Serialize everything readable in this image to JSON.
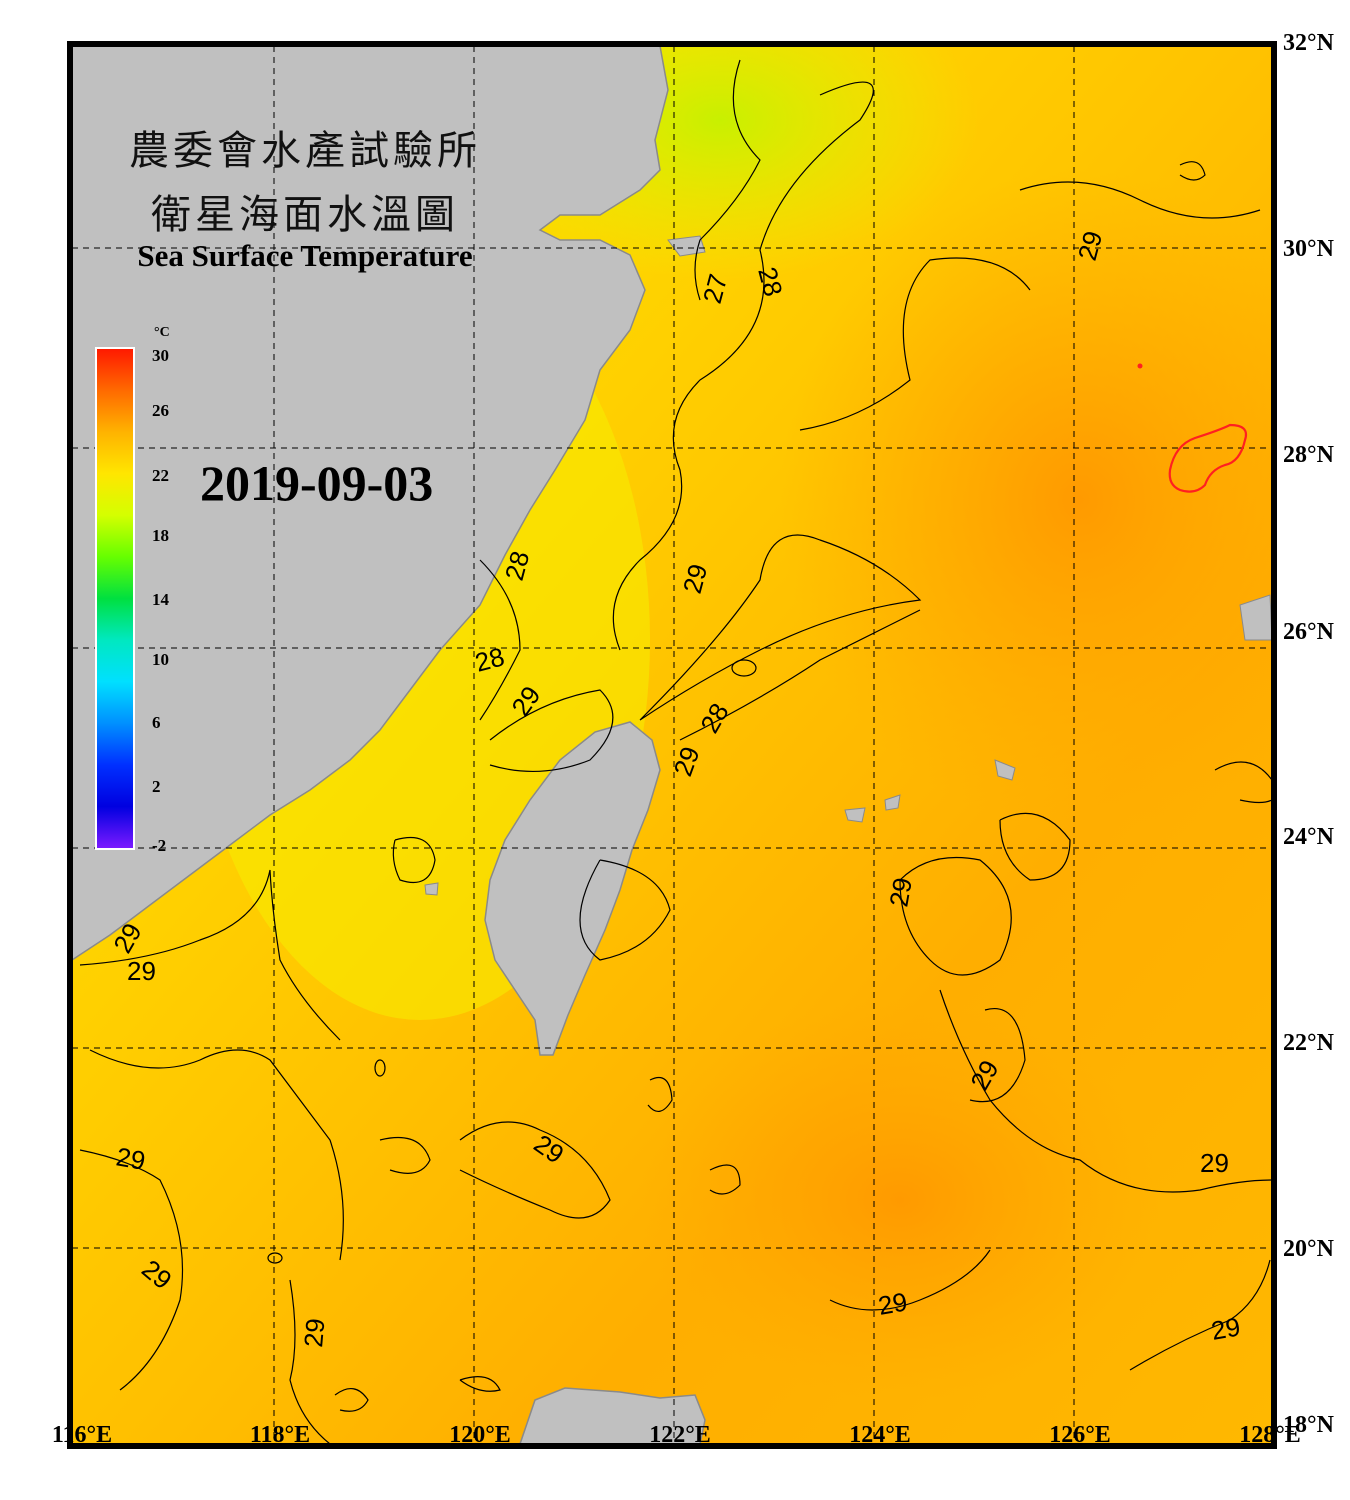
{
  "title_line1": "農委會水產試驗所",
  "title_line2": "衛星海面水溫圖",
  "title_en": "Sea Surface Temperature",
  "date": "2019-09-03",
  "colorbar": {
    "unit": "°C",
    "ticks": [
      "30",
      "26",
      "22",
      "18",
      "14",
      "10",
      "6",
      "2",
      "-2"
    ],
    "colors": [
      "#ff1a00",
      "#ff6a00",
      "#ffb300",
      "#ffe600",
      "#d4ff00",
      "#66ff00",
      "#00e040",
      "#00e8c0",
      "#00e0ff",
      "#0090ff",
      "#0030ff",
      "#0000e0",
      "#7a1aff"
    ]
  },
  "lat_labels": [
    "32°N",
    "30°N",
    "28°N",
    "26°N",
    "24°N",
    "22°N",
    "20°N",
    "18°N"
  ],
  "lon_labels": [
    "116°E",
    "118°E",
    "120°E",
    "122°E",
    "124°E",
    "126°E",
    "128°E"
  ],
  "contour_labels": [
    "27",
    "28",
    "28",
    "28",
    "28",
    "29",
    "29",
    "29",
    "29",
    "29",
    "29",
    "29",
    "29",
    "29",
    "29",
    "29",
    "29",
    "29",
    "29",
    "29",
    "29"
  ],
  "colors": {
    "land": "#c0c0c0",
    "sea_warm": "#ffae00",
    "sea_mid": "#ffc400",
    "sea_cool": "#f6f400",
    "frame": "#000000",
    "hot_contour": "#ff2020"
  }
}
